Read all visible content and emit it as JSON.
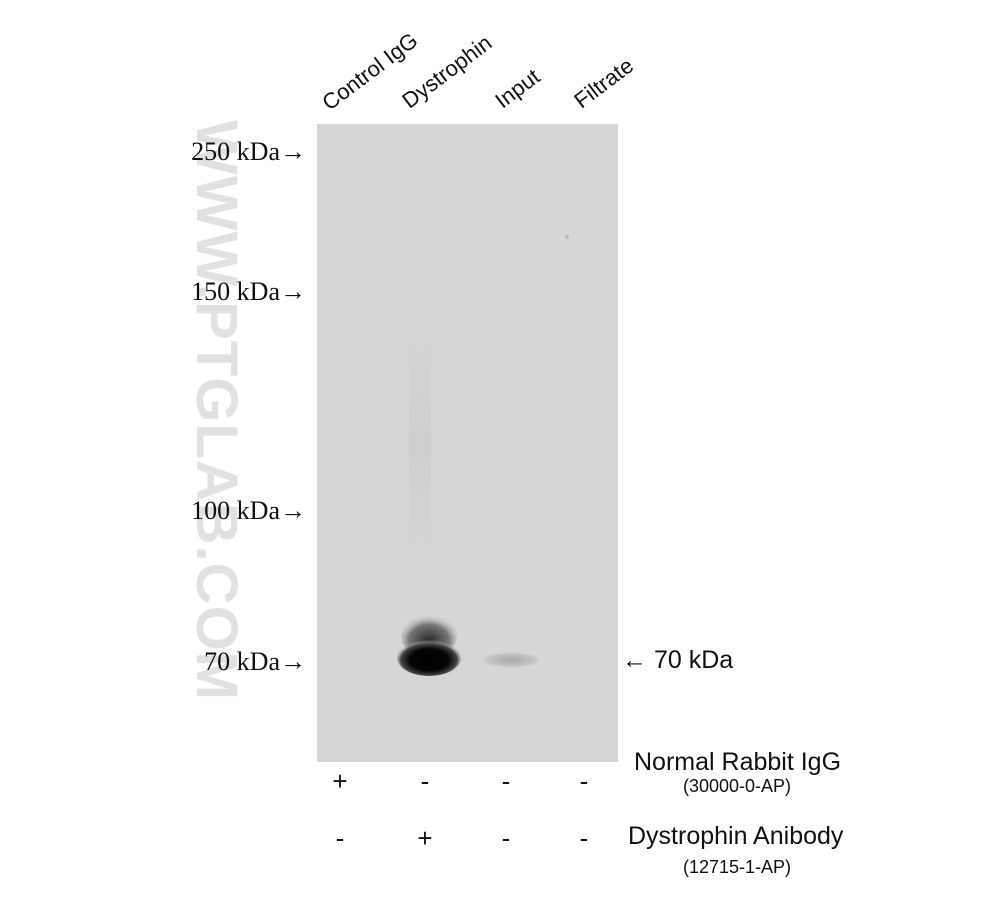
{
  "lanes": [
    "Control IgG",
    "Dystrophin",
    "Input",
    "Filtrate"
  ],
  "markers": [
    "250 kDa→",
    "150 kDa→",
    "100 kDa→",
    "70 kDa→"
  ],
  "watermark": "WWW.PTGLAB.COM",
  "band_label": "← 70 kDa",
  "rows": [
    {
      "label": "Normal Rabbit IgG",
      "catalog": "(30000-0-AP)",
      "signs": [
        "+",
        "-",
        "-",
        "-"
      ]
    },
    {
      "label": "Dystrophin Anibody",
      "catalog": "(12715-1-AP)",
      "signs": [
        "-",
        "+",
        "-",
        "-"
      ]
    }
  ]
}
